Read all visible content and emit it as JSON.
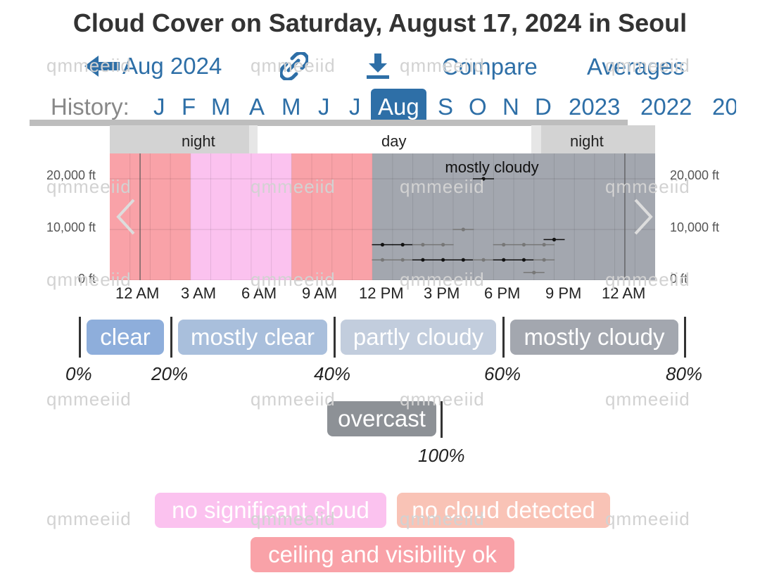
{
  "page": {
    "title": "Cloud Cover on Saturday, August 17, 2024 in Seoul"
  },
  "nav": {
    "back_label": "Aug 2024",
    "compare_label": "Compare",
    "averages_label": "Averages"
  },
  "history": {
    "label": "History:",
    "months": [
      "J",
      "F",
      "M",
      "A",
      "M",
      "J",
      "J",
      "Aug",
      "S",
      "O",
      "N",
      "D"
    ],
    "active_month": "Aug",
    "years": [
      "2023",
      "2022",
      "20"
    ]
  },
  "watermark": "qmmeeiid",
  "chart_data": {
    "type": "area",
    "day_bands": [
      {
        "label": "night"
      },
      {
        "label": "day"
      },
      {
        "label": "night"
      }
    ],
    "x_ticks": [
      "12 AM",
      "3 AM",
      "6 AM",
      "9 AM",
      "12 PM",
      "3 PM",
      "6 PM",
      "9 PM",
      "12 AM"
    ],
    "y_ticks": [
      "20,000 ft",
      "10,000 ft",
      "0 ft"
    ],
    "ylim_ft": [
      0,
      25000
    ],
    "cover_segments": [
      {
        "start_hour": 0,
        "end_hour": 4,
        "category": "ceiling and visibility ok"
      },
      {
        "start_hour": 4,
        "end_hour": 9,
        "category": "no significant cloud"
      },
      {
        "start_hour": 9,
        "end_hour": 13,
        "category": "ceiling and visibility ok"
      },
      {
        "start_hour": 13,
        "end_hour": 27,
        "category": "mostly cloudy"
      }
    ],
    "annotation": {
      "text": "mostly cloudy",
      "hour": 18.5,
      "ft": 20000
    },
    "cloud_layers": [
      {
        "hour": 13.5,
        "ft": 7000,
        "dark": true
      },
      {
        "hour": 14.5,
        "ft": 7000,
        "dark": true
      },
      {
        "hour": 15.5,
        "ft": 7000,
        "dark": false
      },
      {
        "hour": 16.5,
        "ft": 7000,
        "dark": false
      },
      {
        "hour": 13.5,
        "ft": 4000,
        "dark": false
      },
      {
        "hour": 14.5,
        "ft": 4000,
        "dark": false
      },
      {
        "hour": 15.5,
        "ft": 4000,
        "dark": true
      },
      {
        "hour": 16.5,
        "ft": 4000,
        "dark": true
      },
      {
        "hour": 17.5,
        "ft": 4000,
        "dark": true
      },
      {
        "hour": 17.5,
        "ft": 10000,
        "dark": false
      },
      {
        "hour": 18.5,
        "ft": 4000,
        "dark": false
      },
      {
        "hour": 19.5,
        "ft": 4000,
        "dark": true
      },
      {
        "hour": 20.5,
        "ft": 4000,
        "dark": true
      },
      {
        "hour": 21.5,
        "ft": 4000,
        "dark": false
      },
      {
        "hour": 19.5,
        "ft": 7000,
        "dark": false
      },
      {
        "hour": 20.5,
        "ft": 7000,
        "dark": false
      },
      {
        "hour": 21.5,
        "ft": 7000,
        "dark": false
      },
      {
        "hour": 21,
        "ft": 1500,
        "dark": false
      },
      {
        "hour": 22,
        "ft": 8000,
        "dark": true
      },
      {
        "hour": 18.5,
        "ft": 20000,
        "dark": true
      }
    ]
  },
  "legend": {
    "categories": [
      {
        "label": "clear",
        "color": "#8eaedb"
      },
      {
        "label": "mostly clear",
        "color": "#a9bfdc"
      },
      {
        "label": "partly cloudy",
        "color": "#c2cddd"
      },
      {
        "label": "mostly cloudy",
        "color": "#a3a7af"
      },
      {
        "label": "overcast",
        "color": "#8d9196"
      }
    ],
    "percents": [
      "0%",
      "20%",
      "40%",
      "60%",
      "80%",
      "100%"
    ],
    "special": [
      {
        "label": "no significant cloud",
        "color": "#fbc2ef"
      },
      {
        "label": "no cloud detected",
        "color": "#f9c3b6"
      },
      {
        "label": "ceiling and visibility ok",
        "color": "#f9a2a8"
      }
    ]
  }
}
